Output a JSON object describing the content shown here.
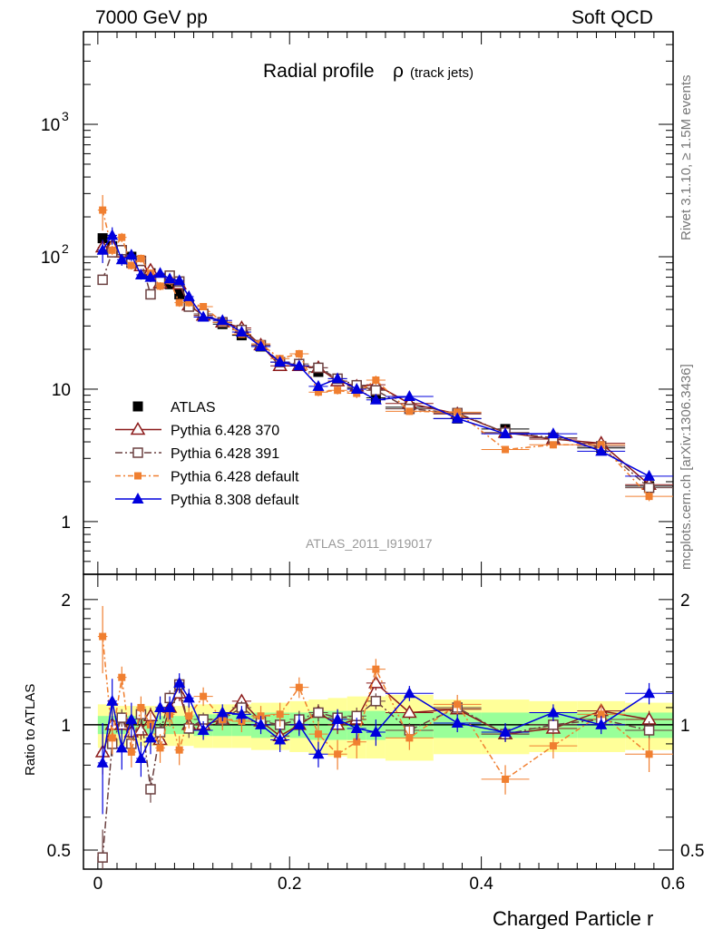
{
  "header": {
    "left": "7000 GeV pp",
    "right": "Soft QCD"
  },
  "side_labels": {
    "rivet": "Rivet 3.1.10, ≥ 1.5M events",
    "mcplots": "mcplots.cern.ch [arXiv:1306.3436]"
  },
  "chart_data": {
    "type": "line",
    "title": "Radial profile",
    "title_symbol": "ρ",
    "title_suffix": "(track jets)",
    "analysis_tag": "ATLAS_2011_I919017",
    "xlabel": "Charged Particle r",
    "ratio_ylabel": "Ratio to ATLAS",
    "xlim": [
      -0.015,
      0.6
    ],
    "ylim": [
      0.4,
      5000
    ],
    "yscale": "log",
    "ratio_ylim": [
      0.45,
      2.3
    ],
    "ratio_yscale": "log",
    "x_ticks": [
      "0",
      "0.2",
      "0.4",
      "0.6"
    ],
    "y_ticks": [
      "1",
      "10",
      "10^3",
      "10^2"
    ],
    "ratio_ticks": [
      "0.5",
      "1",
      "2"
    ],
    "legend_position": "lower-left",
    "x": [
      0.005,
      0.015,
      0.025,
      0.035,
      0.045,
      0.055,
      0.065,
      0.075,
      0.085,
      0.095,
      0.11,
      0.13,
      0.15,
      0.17,
      0.19,
      0.21,
      0.23,
      0.25,
      0.27,
      0.29,
      0.325,
      0.375,
      0.425,
      0.475,
      0.525,
      0.575
    ],
    "xerr": [
      0.005,
      0.005,
      0.005,
      0.005,
      0.005,
      0.005,
      0.005,
      0.005,
      0.005,
      0.005,
      0.01,
      0.01,
      0.01,
      0.01,
      0.01,
      0.01,
      0.01,
      0.01,
      0.01,
      0.01,
      0.025,
      0.025,
      0.025,
      0.025,
      0.025,
      0.025
    ],
    "series": [
      {
        "name": "ATLAS",
        "color": "#000000",
        "marker": "square-filled",
        "line": "none",
        "values": [
          138,
          120,
          108,
          100,
          88,
          75,
          68,
          62,
          52,
          43,
          36,
          31,
          25.5,
          21,
          16,
          15,
          13.5,
          11.5,
          10.2,
          8.6,
          7.3,
          6.0,
          5.0,
          4.3,
          3.6,
          1.85
        ],
        "band_stat": [
          0.05,
          0.05,
          0.05,
          0.05,
          0.05,
          0.05,
          0.05,
          0.05,
          0.05,
          0.05,
          0.06,
          0.06,
          0.06,
          0.07,
          0.07,
          0.07,
          0.08,
          0.08,
          0.08,
          0.08,
          0.07,
          0.07,
          0.07,
          0.07,
          0.07,
          0.07
        ],
        "band_tot": [
          0.12,
          0.12,
          0.11,
          0.11,
          0.11,
          0.11,
          0.11,
          0.11,
          0.11,
          0.11,
          0.12,
          0.12,
          0.12,
          0.13,
          0.13,
          0.14,
          0.15,
          0.16,
          0.17,
          0.17,
          0.18,
          0.15,
          0.15,
          0.14,
          0.14,
          0.13
        ]
      },
      {
        "name": "Pythia 6.428 370",
        "color": "#8b1a1a",
        "marker": "triangle-open",
        "dash": "",
        "values": [
          118,
          120,
          108,
          96,
          85,
          79,
          63,
          68,
          62,
          43,
          36,
          32,
          29,
          21.5,
          15,
          15,
          14.5,
          11.5,
          10.5,
          10.8,
          7.8,
          6.5,
          4.7,
          4.2,
          3.9,
          1.9
        ],
        "ratio": [
          0.86,
          1.0,
          1.0,
          0.96,
          0.97,
          1.05,
          0.92,
          1.1,
          1.19,
          1.0,
          1.0,
          1.03,
          1.14,
          1.02,
          0.94,
          1.0,
          1.07,
          1.0,
          1.03,
          1.26,
          1.07,
          1.09,
          0.95,
          0.98,
          1.08,
          1.03
        ],
        "ratio_err": [
          0.1,
          0.05,
          0.05,
          0.05,
          0.05,
          0.05,
          0.05,
          0.05,
          0.05,
          0.05,
          0.04,
          0.04,
          0.04,
          0.04,
          0.05,
          0.05,
          0.05,
          0.05,
          0.05,
          0.05,
          0.04,
          0.04,
          0.04,
          0.04,
          0.04,
          0.05
        ]
      },
      {
        "name": "Pythia 6.428 391",
        "color": "#6b4040",
        "marker": "square-open",
        "dash": "8,3,2,3",
        "values": [
          67,
          108,
          112,
          90,
          93,
          52,
          65,
          72,
          65,
          42,
          37,
          32,
          28,
          21.5,
          16,
          15.5,
          14.5,
          12,
          10.7,
          9.8,
          7.1,
          6.6,
          4.7,
          4.3,
          3.7,
          1.8
        ],
        "ratio": [
          0.48,
          0.9,
          1.04,
          0.9,
          1.06,
          0.7,
          0.96,
          1.16,
          1.25,
          0.98,
          1.03,
          1.03,
          1.1,
          1.02,
          1.0,
          1.03,
          1.07,
          1.04,
          1.05,
          1.14,
          0.97,
          1.1,
          0.95,
          1.0,
          1.03,
          0.97
        ],
        "ratio_err": [
          0.08,
          0.06,
          0.05,
          0.05,
          0.05,
          0.05,
          0.05,
          0.05,
          0.05,
          0.05,
          0.04,
          0.04,
          0.04,
          0.04,
          0.05,
          0.05,
          0.05,
          0.05,
          0.05,
          0.05,
          0.04,
          0.04,
          0.04,
          0.04,
          0.04,
          0.05
        ]
      },
      {
        "name": "Pythia 6.428 default",
        "color": "#f07f30",
        "marker": "square-small-filled",
        "dash": "6,3,2,3",
        "values": [
          225,
          112,
          140,
          86,
          97,
          75,
          60,
          66,
          45,
          45,
          42,
          32,
          26,
          22,
          17,
          18.5,
          9.5,
          9.8,
          9.3,
          11.7,
          6.8,
          6.7,
          3.5,
          3.8,
          3.8,
          1.55
        ],
        "ratio": [
          1.63,
          0.93,
          1.3,
          0.86,
          1.1,
          1.0,
          0.88,
          1.06,
          0.87,
          1.05,
          1.17,
          1.03,
          1.02,
          1.05,
          1.06,
          1.23,
          0.95,
          0.85,
          0.91,
          1.36,
          0.93,
          1.12,
          0.74,
          0.89,
          1.06,
          0.85
        ],
        "ratio_err": [
          0.3,
          0.08,
          0.08,
          0.07,
          0.07,
          0.07,
          0.07,
          0.07,
          0.07,
          0.07,
          0.06,
          0.06,
          0.06,
          0.06,
          0.07,
          0.07,
          0.07,
          0.07,
          0.08,
          0.08,
          0.06,
          0.06,
          0.06,
          0.06,
          0.06,
          0.08
        ]
      },
      {
        "name": "Pythia 8.308 default",
        "color": "#0000dd",
        "marker": "triangle-filled",
        "dash": "",
        "values": [
          112,
          145,
          95,
          103,
          73,
          70,
          75,
          68,
          66,
          50,
          35,
          33,
          27,
          21,
          16,
          15,
          10.5,
          12,
          10,
          8.3,
          8.8,
          6.0,
          4.6,
          4.6,
          3.4,
          2.2
        ],
        "ratio": [
          0.81,
          1.14,
          0.88,
          1.03,
          0.83,
          0.93,
          1.1,
          1.1,
          1.26,
          1.16,
          0.97,
          1.07,
          1.06,
          1.0,
          0.92,
          1.0,
          0.85,
          1.03,
          0.98,
          0.96,
          1.19,
          1.01,
          0.96,
          1.07,
          1.0,
          1.19
        ],
        "ratio_err": [
          0.2,
          0.15,
          0.1,
          0.1,
          0.08,
          0.08,
          0.07,
          0.07,
          0.07,
          0.06,
          0.05,
          0.05,
          0.05,
          0.05,
          0.06,
          0.06,
          0.06,
          0.06,
          0.06,
          0.07,
          0.05,
          0.05,
          0.05,
          0.05,
          0.05,
          0.07
        ]
      }
    ]
  }
}
